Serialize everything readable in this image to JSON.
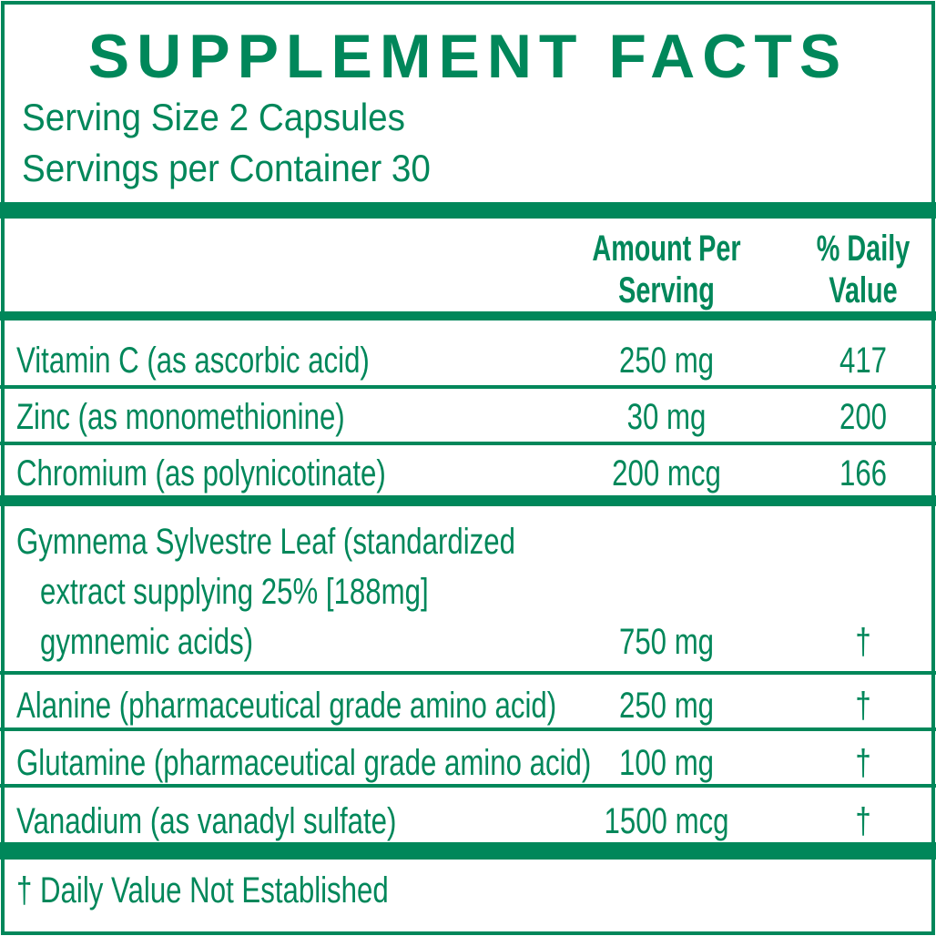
{
  "title": "SUPPLEMENT FACTS",
  "serving_size": "Serving Size 2 Capsules",
  "servings_per_container": "Servings per Container 30",
  "header": {
    "amount_line1": "Amount Per",
    "amount_line2": "Serving",
    "dv_line1": "% Daily",
    "dv_line2": "Value"
  },
  "rows": [
    {
      "name": "Vitamin C (as ascorbic acid)",
      "amount": "250 mg",
      "dv": "417"
    },
    {
      "name": "Zinc (as monomethionine)",
      "amount": "30 mg",
      "dv": "200"
    },
    {
      "name": "Chromium (as polynicotinate)",
      "amount": "200 mcg",
      "dv": "166"
    },
    {
      "name": "Gymnema Sylvestre Leaf (standardized",
      "name2": "extract supplying 25% [188mg]",
      "name3": "gymnemic acids)",
      "amount": "750 mg",
      "dv": "†"
    },
    {
      "name": "Alanine (pharmaceutical grade amino acid)",
      "amount": "250 mg",
      "dv": "†"
    },
    {
      "name": "Glutamine (pharmaceutical grade amino acid)",
      "amount": "100 mg",
      "dv": "†"
    },
    {
      "name": "Vanadium (as vanadyl sulfate)",
      "amount": "1500 mcg",
      "dv": "†"
    }
  ],
  "footnote": "† Daily Value Not Established",
  "colors": {
    "green": "#00875a"
  }
}
